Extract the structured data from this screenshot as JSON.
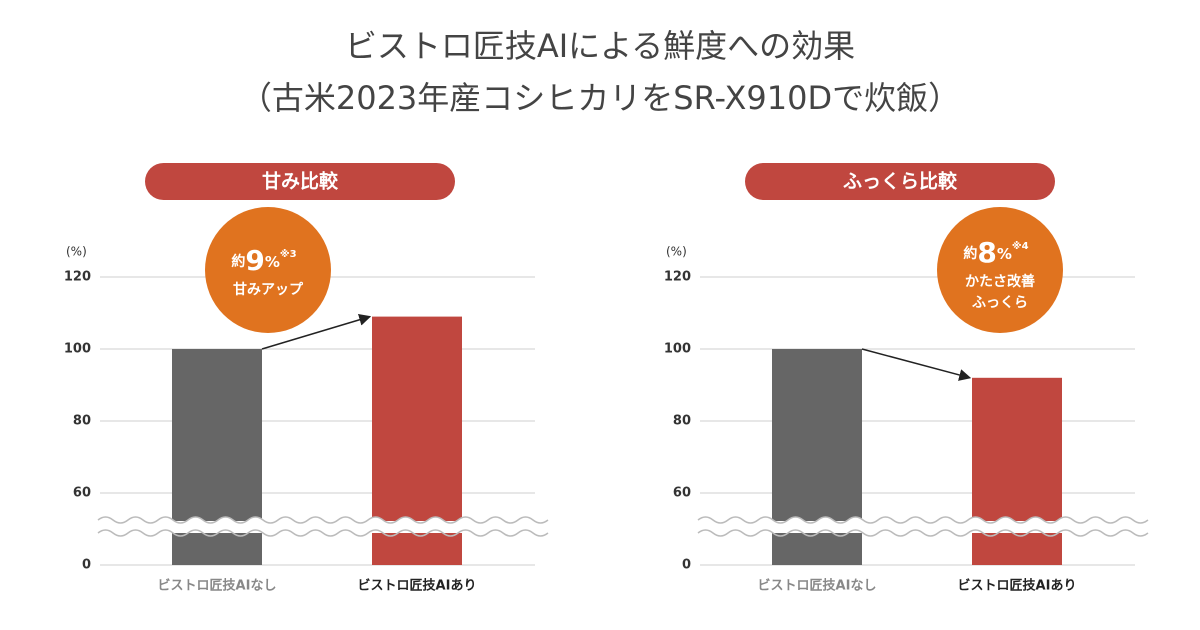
{
  "title_lines": [
    "ビストロ匠技AIによる鮮度への効果",
    "（古米2023年産コシヒカリをSR-X910Dで炊飯）"
  ],
  "chart_data": [
    {
      "type": "bar",
      "title": "甘み比較",
      "y_label": "(%)",
      "categories": [
        "ビストロ匠技AIなし",
        "ビストロ匠技AIあり"
      ],
      "values": [
        100,
        109
      ],
      "colors": [
        "#666666",
        "#c0473f"
      ],
      "ylim": [
        0,
        120
      ],
      "yticks": [
        0,
        60,
        80,
        100,
        120
      ],
      "axis_break": [
        0,
        60
      ],
      "grid": true,
      "annotation": {
        "prefix": "約",
        "value": 9,
        "unit": "%",
        "note": "※3",
        "lines": [
          "甘みアップ"
        ]
      }
    },
    {
      "type": "bar",
      "title": "ふっくら比較",
      "y_label": "(%)",
      "categories": [
        "ビストロ匠技AIなし",
        "ビストロ匠技AIあり"
      ],
      "values": [
        100,
        92
      ],
      "colors": [
        "#666666",
        "#c0473f"
      ],
      "ylim": [
        0,
        120
      ],
      "yticks": [
        0,
        60,
        80,
        100,
        120
      ],
      "axis_break": [
        0,
        60
      ],
      "grid": true,
      "annotation": {
        "prefix": "約",
        "value": 8,
        "unit": "%",
        "note": "※4",
        "lines": [
          "かたさ改善",
          "ふっくら"
        ]
      }
    }
  ]
}
